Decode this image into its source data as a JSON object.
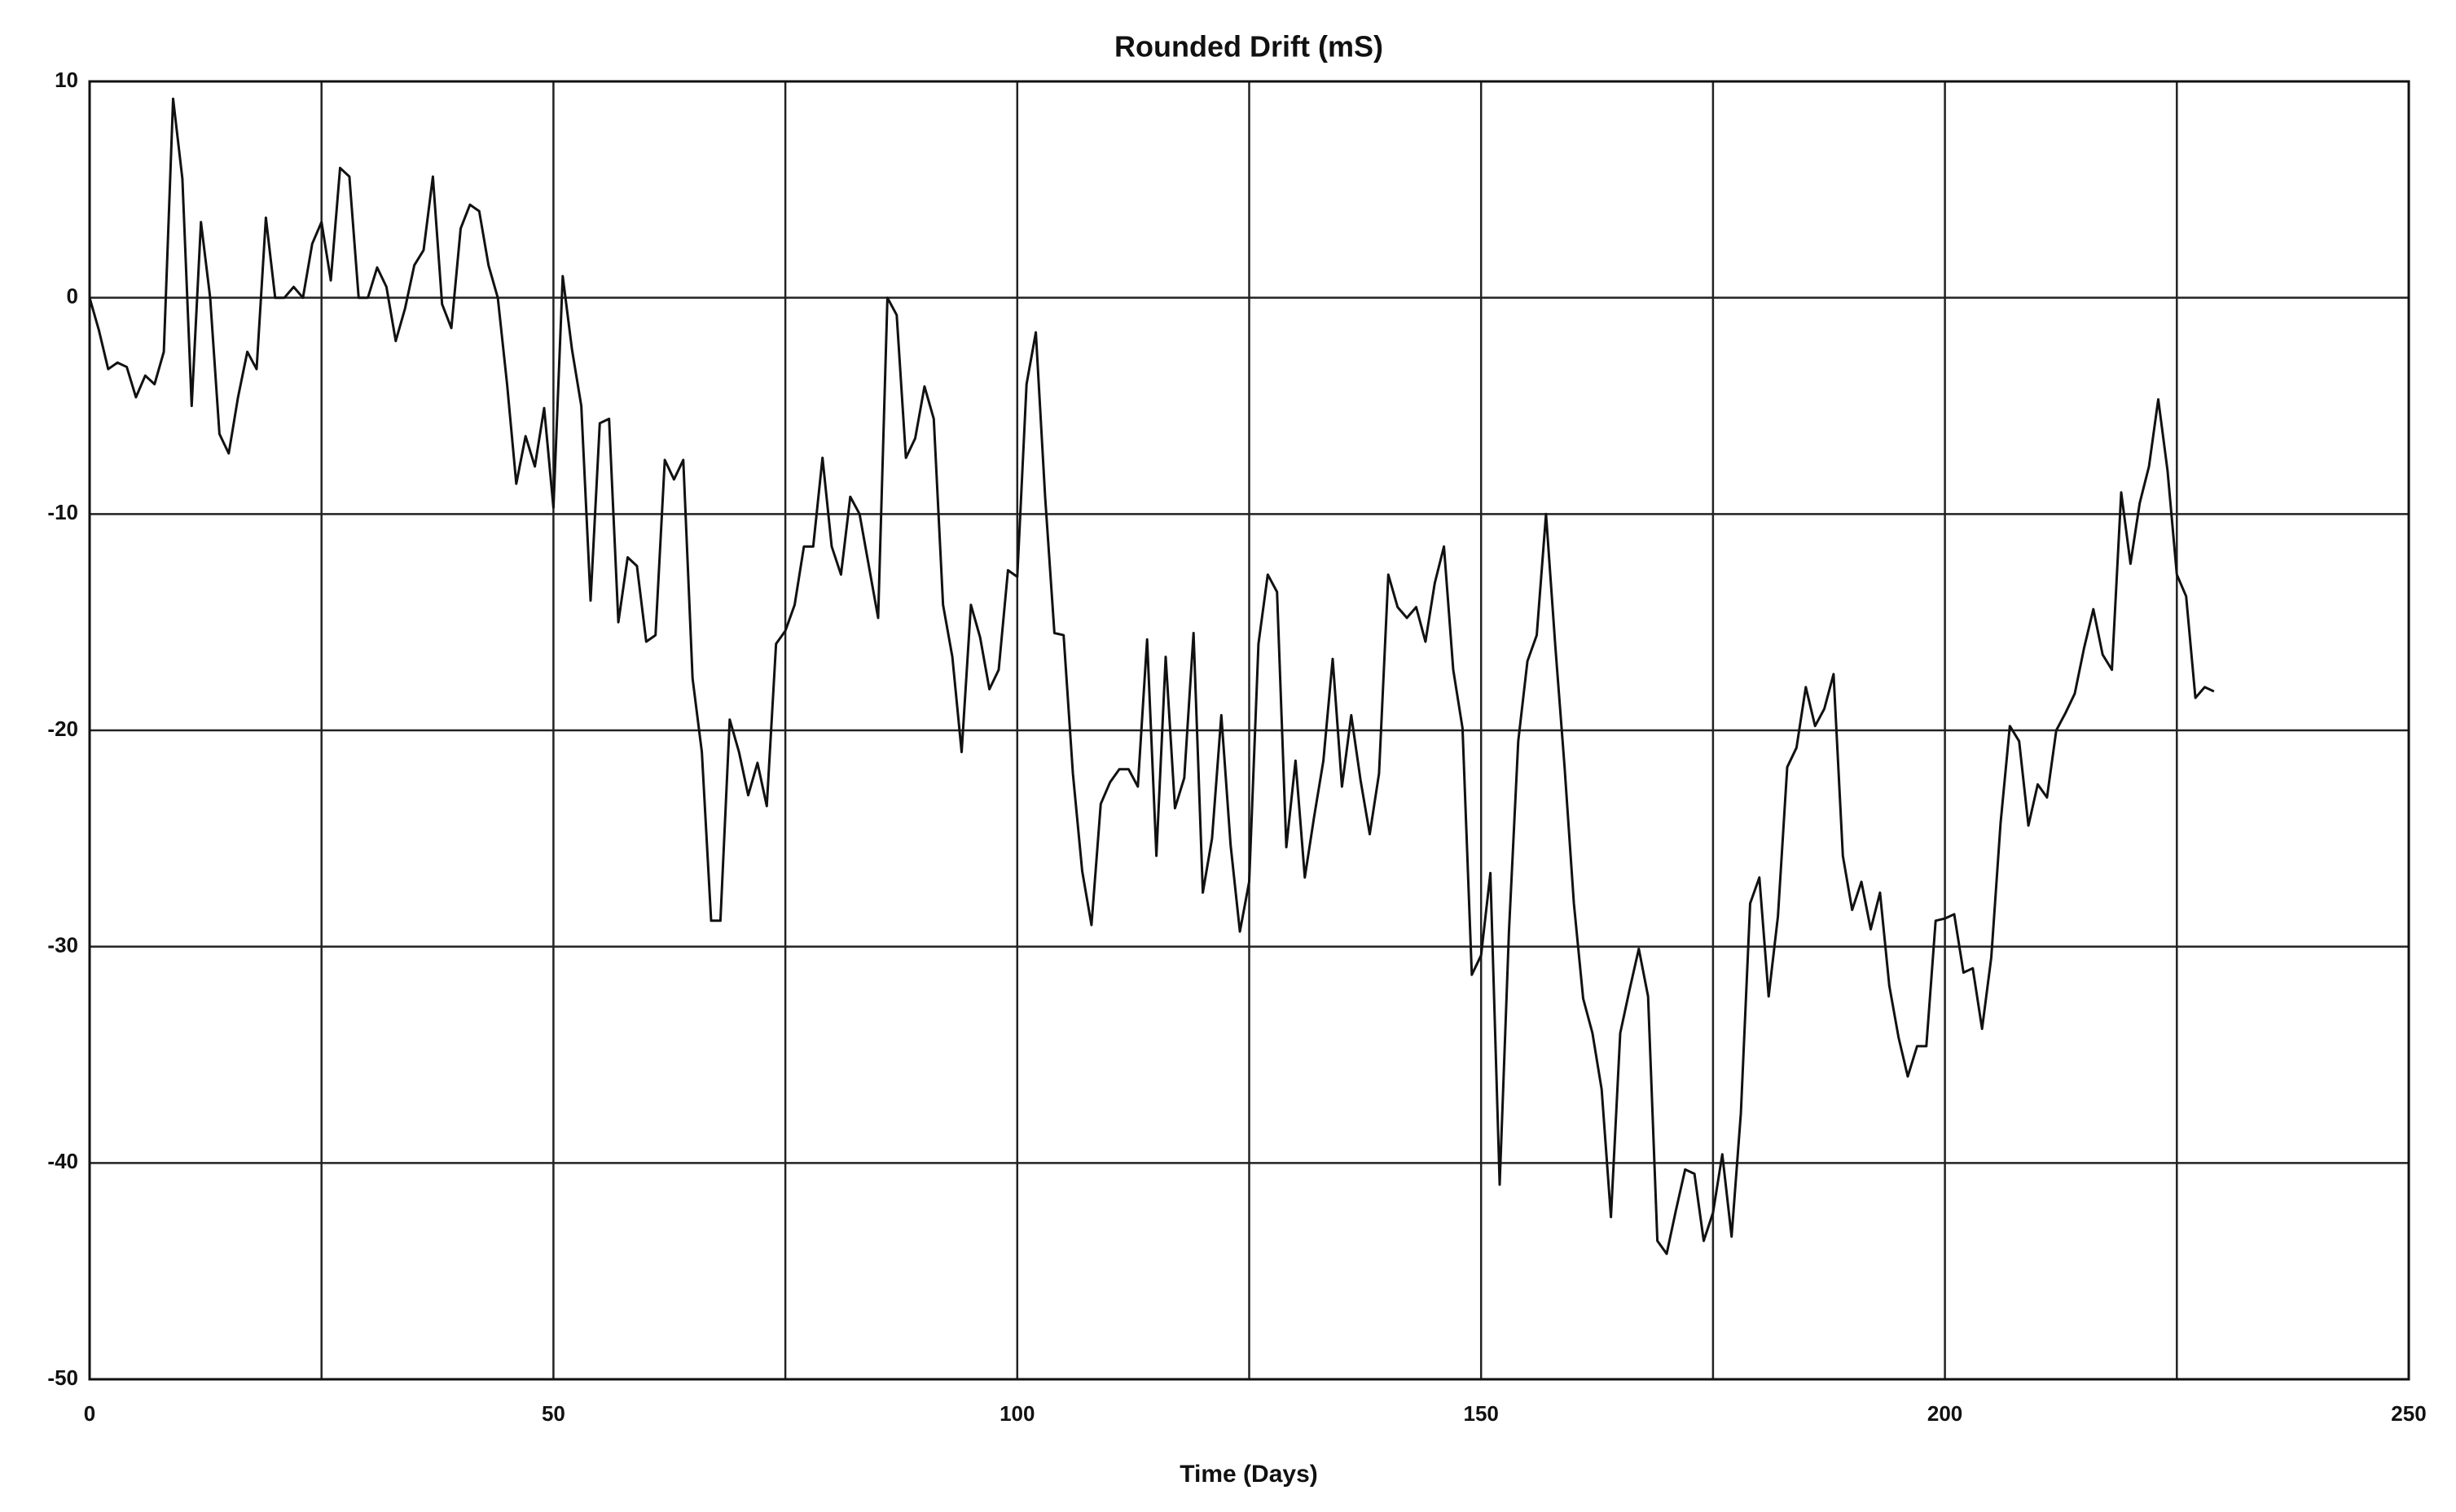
{
  "chart_data": {
    "type": "line",
    "title": "Rounded Drift (mS)",
    "x_label": "Time (Days)",
    "x": [
      0,
      1,
      2,
      3,
      4,
      5,
      6,
      7,
      8,
      9,
      10,
      11,
      12,
      13,
      14,
      15,
      16,
      17,
      18,
      19,
      20,
      21,
      22,
      23,
      24,
      25,
      26,
      27,
      28,
      29,
      30,
      31,
      32,
      33,
      34,
      35,
      36,
      37,
      38,
      39,
      40,
      41,
      42,
      43,
      44,
      45,
      46,
      47,
      48,
      49,
      50,
      51,
      52,
      53,
      54,
      55,
      56,
      57,
      58,
      59,
      60,
      61,
      62,
      63,
      64,
      65,
      66,
      67,
      68,
      69,
      70,
      71,
      72,
      73,
      74,
      75,
      76,
      77,
      78,
      79,
      80,
      81,
      82,
      83,
      84,
      85,
      86,
      87,
      88,
      89,
      90,
      91,
      92,
      93,
      94,
      95,
      96,
      97,
      98,
      99,
      100,
      101,
      102,
      103,
      104,
      105,
      106,
      107,
      108,
      109,
      110,
      111,
      112,
      113,
      114,
      115,
      116,
      117,
      118,
      119,
      120,
      121,
      122,
      123,
      124,
      125,
      126,
      127,
      128,
      129,
      130,
      131,
      132,
      133,
      134,
      135,
      136,
      137,
      138,
      139,
      140,
      141,
      142,
      143,
      144,
      145,
      146,
      147,
      148,
      149,
      150,
      151,
      152,
      153,
      154,
      155,
      156,
      157,
      158,
      159,
      160,
      161,
      162,
      163,
      164,
      165,
      166,
      167,
      168,
      169,
      170,
      171,
      172,
      173,
      174,
      175,
      176,
      177,
      178,
      179,
      180,
      181,
      182,
      183,
      184,
      185,
      186,
      187,
      188,
      189,
      190,
      191,
      192,
      193,
      194,
      195,
      196,
      197,
      198,
      199,
      200,
      201,
      202,
      203,
      204,
      205,
      206,
      207,
      208,
      209,
      210,
      211,
      212,
      213,
      214,
      215,
      216,
      217,
      218,
      219,
      220,
      221,
      222,
      223,
      224,
      225,
      226,
      227,
      228,
      229
    ],
    "values": [
      0,
      -1.5,
      -3.3,
      -3,
      -3.2,
      -4.6,
      -3.6,
      -4,
      -2.5,
      9.2,
      5.5,
      -5,
      3.5,
      0,
      -6.3,
      -7.2,
      -4.6,
      -2.5,
      -3.3,
      3.7,
      0,
      0,
      0.5,
      0,
      2.5,
      3.5,
      0.8,
      6,
      5.6,
      0,
      0,
      1.4,
      0.5,
      -2,
      -0.5,
      1.5,
      2.2,
      5.6,
      -0.3,
      -1.4,
      3.2,
      4.3,
      4,
      1.5,
      0,
      -4,
      -8.6,
      -6.4,
      -7.8,
      -5.1,
      -9.7,
      1,
      -2.4,
      -5,
      -14,
      -5.8,
      -5.6,
      -15,
      -12,
      -12.4,
      -15.9,
      -15.6,
      -7.5,
      -8.4,
      -7.5,
      -17.6,
      -21,
      -28.8,
      -28.8,
      -19.5,
      -21,
      -23,
      -21.5,
      -23.5,
      -16,
      -15.4,
      -14.2,
      -11.5,
      -11.5,
      -7.4,
      -11.5,
      -12.8,
      -9.2,
      -10,
      -12.4,
      -14.8,
      0,
      -0.8,
      -7.4,
      -6.5,
      -4.1,
      -5.6,
      -14.2,
      -16.6,
      -21,
      -14.2,
      -15.7,
      -18.1,
      -17.2,
      -12.6,
      -12.9,
      -4,
      -1.6,
      -9.2,
      -15.5,
      -15.6,
      -22,
      -26.5,
      -29,
      -23.4,
      -22.4,
      -21.8,
      -21.8,
      -22.6,
      -15.8,
      -25.8,
      -16.6,
      -23.6,
      -22.2,
      -15.5,
      -27.5,
      -25,
      -19.3,
      -25.3,
      -29.3,
      -27,
      -16,
      -12.8,
      -13.6,
      -25.4,
      -21.4,
      -26.8,
      -24,
      -21.4,
      -16.7,
      -22.6,
      -19.3,
      -22.3,
      -24.8,
      -22,
      -12.8,
      -14.3,
      -14.8,
      -14.3,
      -15.9,
      -13.2,
      -11.5,
      -17.2,
      -19.9,
      -31.3,
      -30.4,
      -26.6,
      -41,
      -29.3,
      -20.5,
      -16.8,
      -15.6,
      -10,
      -16.1,
      -21.7,
      -28,
      -32.4,
      -34,
      -36.6,
      -42.5,
      -34,
      -32,
      -30.1,
      -32.3,
      -43.6,
      -44.2,
      -42.2,
      -40.3,
      -40.5,
      -43.6,
      -42.3,
      -39.6,
      -43.4,
      -37.7,
      -28,
      -26.8,
      -32.3,
      -28.6,
      -21.7,
      -20.8,
      -18,
      -19.8,
      -19,
      -17.4,
      -25.8,
      -28.3,
      -27,
      -29.2,
      -27.5,
      -31.8,
      -34.2,
      -36,
      -34.6,
      -34.6,
      -28.8,
      -28.7,
      -28.5,
      -31.2,
      -31,
      -33.8,
      -30.5,
      -24.3,
      -19.8,
      -20.5,
      -24.4,
      -22.5,
      -23.1,
      -20,
      -19.2,
      -18.3,
      -16.2,
      -14.4,
      -16.5,
      -17.2,
      -9,
      -12.3,
      -9.5,
      -7.8,
      -4.7,
      -8,
      -12.8,
      -13.8,
      -18.5,
      -18,
      -18.2
    ],
    "color": "#111111",
    "xlim": [
      0,
      250
    ],
    "xticks": [
      0,
      50,
      100,
      150,
      200,
      250
    ],
    "xminorticks": [
      25,
      75,
      125,
      175,
      225
    ],
    "ylim": [
      -50,
      10
    ],
    "yticks": [
      -50,
      -40,
      -30,
      -20,
      -10,
      0,
      10
    ],
    "grid": true
  }
}
